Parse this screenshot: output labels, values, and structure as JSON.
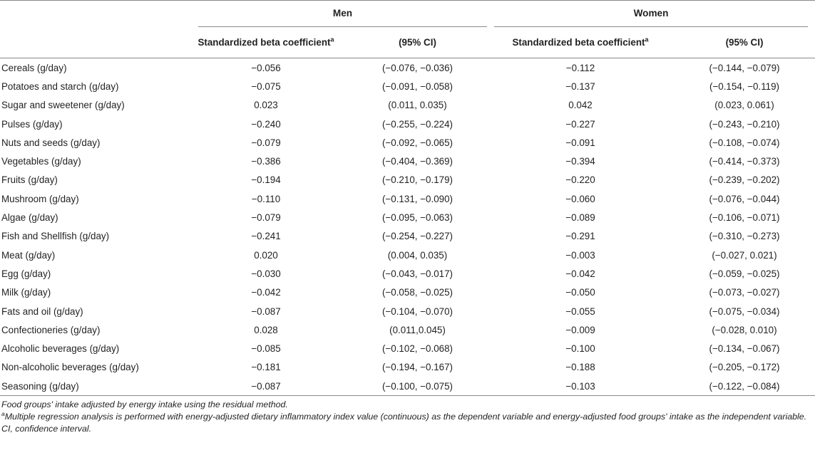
{
  "header": {
    "group_men": "Men",
    "group_women": "Women",
    "col_beta": "Standardized beta coefficient",
    "col_beta_sup": "a",
    "col_ci": "(95% CI)"
  },
  "rows": [
    {
      "food": "Cereals (g/day)",
      "men_beta": "−0.056",
      "men_ci": "(−0.076, −0.036)",
      "women_beta": "−0.112",
      "women_ci": "(−0.144, −0.079)"
    },
    {
      "food": "Potatoes and starch (g/day)",
      "men_beta": "−0.075",
      "men_ci": "(−0.091, −0.058)",
      "women_beta": "−0.137",
      "women_ci": "(−0.154, −0.119)"
    },
    {
      "food": "Sugar and sweetener (g/day)",
      "men_beta": "0.023",
      "men_ci": "(0.011, 0.035)",
      "women_beta": "0.042",
      "women_ci": "(0.023, 0.061)"
    },
    {
      "food": "Pulses (g/day)",
      "men_beta": "−0.240",
      "men_ci": "(−0.255, −0.224)",
      "women_beta": "−0.227",
      "women_ci": "(−0.243, −0.210)"
    },
    {
      "food": "Nuts and seeds (g/day)",
      "men_beta": "−0.079",
      "men_ci": "(−0.092, −0.065)",
      "women_beta": "−0.091",
      "women_ci": "(−0.108, −0.074)"
    },
    {
      "food": "Vegetables (g/day)",
      "men_beta": "−0.386",
      "men_ci": "(−0.404, −0.369)",
      "women_beta": "−0.394",
      "women_ci": "(−0.414, −0.373)"
    },
    {
      "food": "Fruits (g/day)",
      "men_beta": "−0.194",
      "men_ci": "(−0.210, −0.179)",
      "women_beta": "−0.220",
      "women_ci": "(−0.239, −0.202)"
    },
    {
      "food": "Mushroom (g/day)",
      "men_beta": "−0.110",
      "men_ci": "(−0.131, −0.090)",
      "women_beta": "−0.060",
      "women_ci": "(−0.076, −0.044)"
    },
    {
      "food": "Algae (g/day)",
      "men_beta": "−0.079",
      "men_ci": "(−0.095, −0.063)",
      "women_beta": "−0.089",
      "women_ci": "(−0.106, −0.071)"
    },
    {
      "food": "Fish and Shellfish (g/day)",
      "men_beta": "−0.241",
      "men_ci": "(−0.254, −0.227)",
      "women_beta": "−0.291",
      "women_ci": "(−0.310, −0.273)"
    },
    {
      "food": "Meat (g/day)",
      "men_beta": "0.020",
      "men_ci": "(0.004, 0.035)",
      "women_beta": "−0.003",
      "women_ci": "(−0.027, 0.021)"
    },
    {
      "food": "Egg (g/day)",
      "men_beta": "−0.030",
      "men_ci": "(−0.043, −0.017)",
      "women_beta": "−0.042",
      "women_ci": "(−0.059, −0.025)"
    },
    {
      "food": "Milk (g/day)",
      "men_beta": "−0.042",
      "men_ci": "(−0.058, −0.025)",
      "women_beta": "−0.050",
      "women_ci": "(−0.073, −0.027)"
    },
    {
      "food": "Fats and oil (g/day)",
      "men_beta": "−0.087",
      "men_ci": "(−0.104, −0.070)",
      "women_beta": "−0.055",
      "women_ci": "(−0.075, −0.034)"
    },
    {
      "food": "Confectioneries (g/day)",
      "men_beta": "0.028",
      "men_ci": "(0.011,0.045)",
      "women_beta": "−0.009",
      "women_ci": "(−0.028, 0.010)"
    },
    {
      "food": "Alcoholic beverages (g/day)",
      "men_beta": "−0.085",
      "men_ci": "(−0.102, −0.068)",
      "women_beta": "−0.100",
      "women_ci": "(−0.134, −0.067)"
    },
    {
      "food": "Non-alcoholic beverages (g/day)",
      "men_beta": "−0.181",
      "men_ci": "(−0.194, −0.167)",
      "women_beta": "−0.188",
      "women_ci": "(−0.205, −0.172)"
    },
    {
      "food": "Seasoning (g/day)",
      "men_beta": "−0.087",
      "men_ci": "(−0.100, −0.075)",
      "women_beta": "−0.103",
      "women_ci": "(−0.122, −0.084)"
    }
  ],
  "notes": {
    "note1": "Food groups' intake adjusted by energy intake using the residual method.",
    "note2_sup": "a",
    "note2": "Multiple regression analysis is performed with energy-adjusted dietary inflammatory index value (continuous) as the dependent variable and energy-adjusted food groups' intake as the independent variable.",
    "note3": "CI, confidence interval."
  }
}
